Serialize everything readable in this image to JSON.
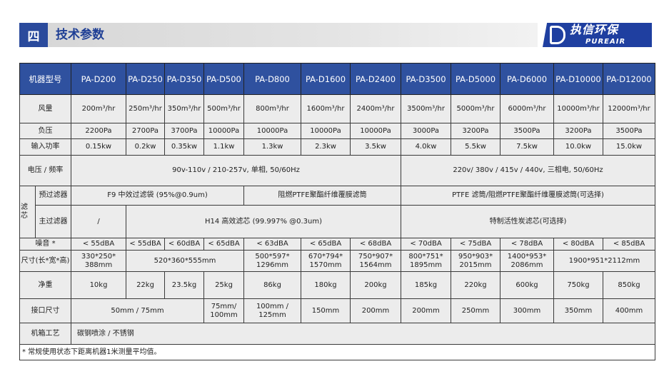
{
  "section": {
    "number": "四",
    "title": "技术参数"
  },
  "logo": {
    "cn": "执信环保",
    "en": "PUREAIR",
    "mark": "P"
  },
  "colors": {
    "header_bg": "#2f519f",
    "cell_bg": "#ececec",
    "title_accent": "#2a4a9c"
  },
  "table": {
    "header_label": "机器型号",
    "models": [
      "PA-D200",
      "PA-D250",
      "PA-D350",
      "PA-D500",
      "PA-D800",
      "PA-D1600",
      "PA-D2400",
      "PA-D3500",
      "PA-D5000",
      "PA-D6000",
      "PA-D10000",
      "PA-D12000"
    ],
    "rows": [
      {
        "label": "风量",
        "cells": [
          [
            "200m³/hr",
            1
          ],
          [
            "250m³/hr",
            1
          ],
          [
            "350m³/hr",
            1
          ],
          [
            "500m³/hr",
            1
          ],
          [
            "800m³/hr",
            1
          ],
          [
            "1600m³/hr",
            1
          ],
          [
            "2400m³/hr",
            1
          ],
          [
            "3500m³/hr",
            1
          ],
          [
            "5000m³/hr",
            1
          ],
          [
            "6000m³/hr",
            1
          ],
          [
            "10000m³/hr",
            1
          ],
          [
            "12000m³/hr",
            1
          ]
        ]
      },
      {
        "label": "负压",
        "cells": [
          [
            "2200Pa",
            1
          ],
          [
            "2700Pa",
            1
          ],
          [
            "3700Pa",
            1
          ],
          [
            "10000Pa",
            1
          ],
          [
            "10000Pa",
            1
          ],
          [
            "10000Pa",
            1
          ],
          [
            "10000Pa",
            1
          ],
          [
            "3000Pa",
            1
          ],
          [
            "3200Pa",
            1
          ],
          [
            "3500Pa",
            1
          ],
          [
            "3200Pa",
            1
          ],
          [
            "3500Pa",
            1
          ]
        ]
      },
      {
        "label": "输入功率",
        "cells": [
          [
            "0.15kw",
            1
          ],
          [
            "0.2kw",
            1
          ],
          [
            "0.35kw",
            1
          ],
          [
            "1.1kw",
            1
          ],
          [
            "1.3kw",
            1
          ],
          [
            "2.3kw",
            1
          ],
          [
            "3.5kw",
            1
          ],
          [
            "4.0kw",
            1
          ],
          [
            "5.5kw",
            1
          ],
          [
            "7.5kw",
            1
          ],
          [
            "10.0kw",
            1
          ],
          [
            "15.0kw",
            1
          ]
        ]
      },
      {
        "label": "电压 / 频率",
        "cells": [
          [
            "90v-110v / 210-257v, 单相, 50/60Hz",
            7
          ],
          [
            "220v/ 380v / 415v / 440v, 三相电, 50/60Hz",
            5
          ]
        ]
      },
      {
        "group": "滤芯",
        "label": "预过滤器",
        "cells": [
          [
            "F9 中效过滤袋 (95%@0.9um)",
            4
          ],
          [
            "阻燃PTFE聚酯纤维覆膜滤筒",
            3
          ],
          [
            "PTFE 滤筒/阻燃PTFE聚酯纤维覆膜滤筒(可选择)",
            5
          ]
        ]
      },
      {
        "label": "主过滤器",
        "cells": [
          [
            "/",
            1
          ],
          [
            "H14 高效滤芯 (99.997% @0.3um)",
            6
          ],
          [
            "特制活性炭滤芯(可选择)",
            5
          ]
        ]
      },
      {
        "label": "噪音 *",
        "cells": [
          [
            "< 55dBA",
            1
          ],
          [
            "< 55dBA",
            1
          ],
          [
            "< 60dBA",
            1
          ],
          [
            "< 65dBA",
            1
          ],
          [
            "< 63dBA",
            1
          ],
          [
            "< 65dBA",
            1
          ],
          [
            "< 68dBA",
            1
          ],
          [
            "< 70dBA",
            1
          ],
          [
            "< 75dBA",
            1
          ],
          [
            "< 78dBA",
            1
          ],
          [
            "< 80dBA",
            1
          ],
          [
            "< 85dBA",
            1
          ]
        ]
      },
      {
        "label": "尺寸(长*宽*高)",
        "cells": [
          [
            "330*250* 388mm",
            1
          ],
          [
            "520*360*555mm",
            3
          ],
          [
            "500*597* 1296mm",
            1
          ],
          [
            "670*794* 1570mm",
            1
          ],
          [
            "750*907* 1564mm",
            1
          ],
          [
            "800*751* 1895mm",
            1
          ],
          [
            "950*903* 2015mm",
            1
          ],
          [
            "1400*953* 2086mm",
            1
          ],
          [
            "1900*951*2112mm",
            2
          ]
        ]
      },
      {
        "label": "净重",
        "cells": [
          [
            "10kg",
            1
          ],
          [
            "22kg",
            1
          ],
          [
            "23.5kg",
            1
          ],
          [
            "25kg",
            1
          ],
          [
            "86kg",
            1
          ],
          [
            "180kg",
            1
          ],
          [
            "200kg",
            1
          ],
          [
            "185kg",
            1
          ],
          [
            "220kg",
            1
          ],
          [
            "600kg",
            1
          ],
          [
            "750kg",
            1
          ],
          [
            "850kg",
            1
          ]
        ]
      },
      {
        "label": "接口尺寸",
        "cells": [
          [
            "50mm / 75mm",
            3
          ],
          [
            "75mm/ 100mm",
            1
          ],
          [
            "100mm / 125mm",
            1
          ],
          [
            "150mm",
            1
          ],
          [
            "200mm",
            1
          ],
          [
            "200mm",
            1
          ],
          [
            "250mm",
            1
          ],
          [
            "300mm",
            1
          ],
          [
            "350mm",
            1
          ],
          [
            "400mm",
            1
          ]
        ]
      },
      {
        "label": "机箱工艺",
        "cells": [
          [
            "碳钢喷涂 / 不锈钢",
            12
          ]
        ],
        "align": "left"
      }
    ],
    "footnote": "* 常规使用状态下距离机器1米测量平均值。"
  }
}
